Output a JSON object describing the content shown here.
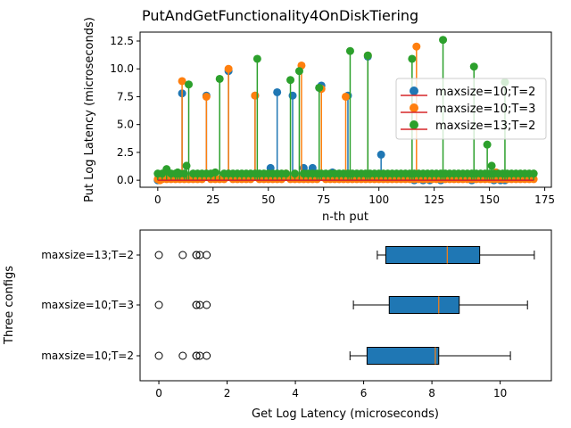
{
  "chart_data": [
    {
      "type": "stem",
      "title": "PutAndGetFunctionality4OnDiskTiering",
      "xlabel": "n-th put",
      "ylabel": "Put Log Latency (microseconds)",
      "xlim": [
        -8,
        178
      ],
      "ylim": [
        -0.63,
        13.3
      ],
      "xticks": [
        0,
        25,
        50,
        75,
        100,
        125,
        150,
        175
      ],
      "yticks": [
        0.0,
        2.5,
        5.0,
        7.5,
        10.0,
        12.5
      ],
      "ytick_labels": [
        "0.0",
        "2.5",
        "5.0",
        "7.5",
        "10.0",
        "12.5"
      ],
      "legend_position": "center-right",
      "baseline_color": "#d62728",
      "series": [
        {
          "name": "maxsize=10;T=2",
          "color": "#1f77b4",
          "x": [
            0,
            11,
            22,
            32,
            44,
            51,
            54,
            61,
            66,
            70,
            73,
            74,
            79,
            86,
            95,
            101,
            116,
            120,
            123,
            128,
            142,
            152,
            155,
            157
          ],
          "y": [
            0.0,
            7.8,
            7.6,
            9.8,
            7.6,
            1.1,
            7.9,
            7.6,
            1.1,
            1.1,
            8.3,
            8.5,
            0.7,
            7.6,
            11.1,
            2.3,
            0.0,
            0.0,
            0.0,
            0.0,
            0.0,
            0.0,
            0.0,
            0.0
          ]
        },
        {
          "name": "maxsize=10;T=3",
          "color": "#ff7f0e",
          "x": [
            1,
            11,
            22,
            32,
            44,
            58,
            65,
            74,
            85,
            95,
            117,
            129,
            153
          ],
          "y": [
            0.0,
            8.9,
            7.5,
            10.0,
            7.6,
            0.6,
            10.3,
            8.2,
            7.5,
            11.2,
            12.0,
            0.5,
            0.7
          ],
          "y_default": 0.1
        },
        {
          "name": "maxsize=13;T=2",
          "color": "#2ca02c",
          "x": [
            0,
            4,
            9,
            13,
            14,
            26,
            28,
            38,
            45,
            60,
            64,
            73,
            87,
            95,
            115,
            129,
            143,
            149,
            151,
            157
          ],
          "y": [
            0.6,
            1.0,
            0.7,
            1.3,
            8.6,
            0.7,
            9.1,
            0.6,
            10.9,
            9.0,
            9.8,
            8.3,
            11.6,
            11.2,
            10.9,
            12.6,
            10.2,
            3.2,
            1.3,
            8.8
          ],
          "y_default": 0.6
        }
      ]
    },
    {
      "type": "boxplot",
      "orientation": "horizontal",
      "xlabel": "Get Log Latency (microseconds)",
      "ylabel": "Three configs",
      "xlim": [
        -0.55,
        11.5
      ],
      "xticks": [
        0,
        2,
        4,
        6,
        8,
        10
      ],
      "box_color": "#1f77b4",
      "median_color": "#ff7f0e",
      "boxes": [
        {
          "label": "maxsize=10;T=2",
          "whisker_low": 5.6,
          "q1": 6.1,
          "median": 8.1,
          "q3": 8.2,
          "whisker_high": 10.3,
          "outliers": [
            0.0,
            0.7,
            1.1,
            1.1,
            1.2,
            1.4
          ]
        },
        {
          "label": "maxsize=10;T=3",
          "whisker_low": 5.7,
          "q1": 6.75,
          "median": 8.2,
          "q3": 8.8,
          "whisker_high": 10.8,
          "outliers": [
            0.0,
            1.1,
            1.1,
            1.2,
            1.4
          ]
        },
        {
          "label": "maxsize=13;T=2",
          "whisker_low": 6.4,
          "q1": 6.65,
          "median": 8.45,
          "q3": 9.4,
          "whisker_high": 11.0,
          "outliers": [
            0.0,
            0.7,
            1.1,
            1.1,
            1.2,
            1.4
          ]
        }
      ]
    }
  ]
}
